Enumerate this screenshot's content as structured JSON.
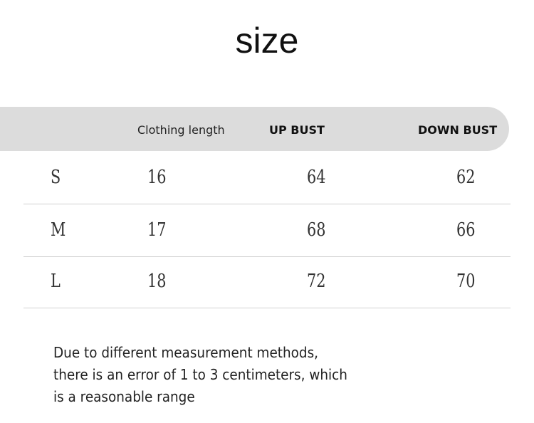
{
  "title": "size",
  "table": {
    "headers": [
      "",
      "Clothing length",
      "UP BUST",
      "DOWN BUST"
    ],
    "rows": [
      [
        "S",
        "16",
        "64",
        "62"
      ],
      [
        "M",
        "17",
        "68",
        "66"
      ],
      [
        "L",
        "18",
        "72",
        "70"
      ]
    ]
  },
  "note": {
    "lines": [
      "Due to different measurement methods,",
      "there is an error of 1 to 3 centimeters, which",
      "is a reasonable range"
    ]
  },
  "colors": {
    "header_bg": "#dcdcdc",
    "divider": "#d0d0d0"
  }
}
